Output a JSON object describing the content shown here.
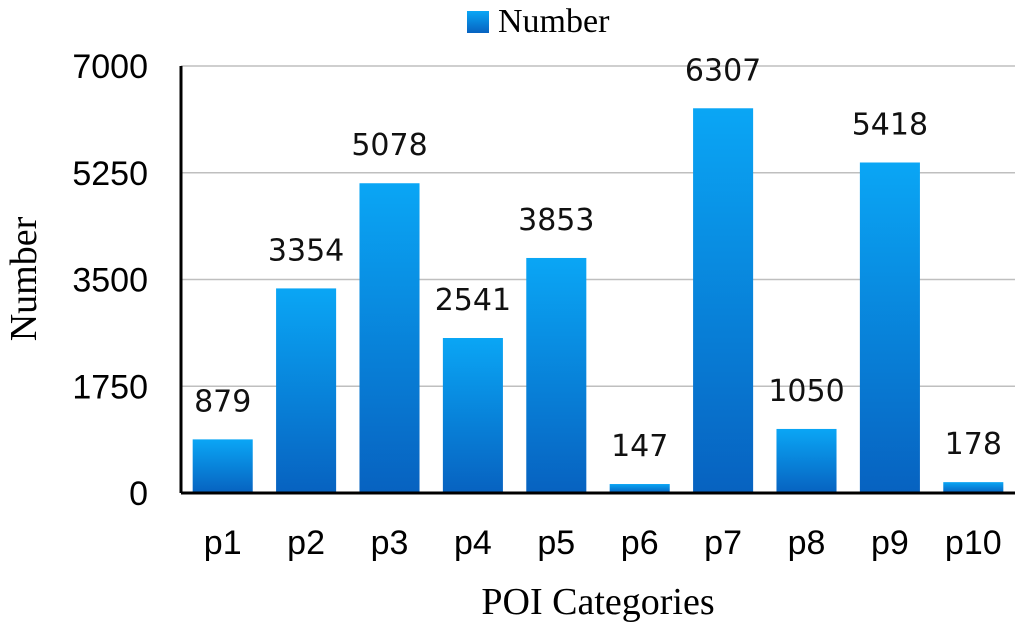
{
  "chart_data": {
    "type": "bar",
    "categories": [
      "p1",
      "p2",
      "p3",
      "p4",
      "p5",
      "p6",
      "p7",
      "p8",
      "p9",
      "p10"
    ],
    "series": [
      {
        "name": "Number",
        "values": [
          879,
          3354,
          5078,
          2541,
          3853,
          147,
          6307,
          1050,
          5418,
          178
        ]
      }
    ],
    "xlabel": "POI Categories",
    "ylabel": "Number",
    "ylim": [
      0,
      7000
    ],
    "yticks": [
      "0",
      "1750",
      "3500",
      "5250",
      "7000"
    ],
    "grid": true,
    "legend": "top-center",
    "colors": {
      "bar_top": "#0aa6f5",
      "bar_bottom": "#0762c0",
      "grid": "#bfbfbf",
      "axis": "#000000"
    }
  }
}
